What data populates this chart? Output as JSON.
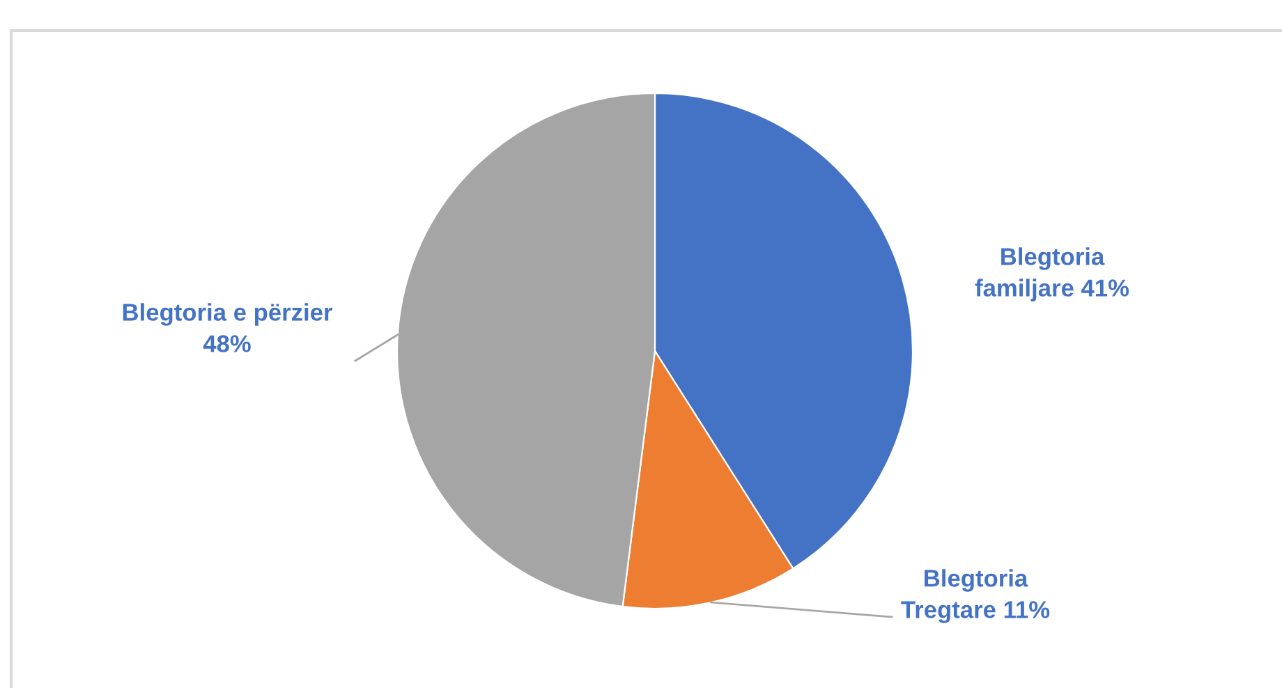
{
  "chart_data": {
    "type": "pie",
    "categories": [
      "Blegtoria\nfamiljare",
      "Blegtoria\nTregtare",
      "Blegtoria e përzier"
    ],
    "values": [
      41,
      11,
      48
    ],
    "colors": [
      "#4472c4",
      "#ed7d31",
      "#a5a5a5"
    ],
    "value_labels": [
      "41%",
      "11%",
      "48%"
    ]
  }
}
